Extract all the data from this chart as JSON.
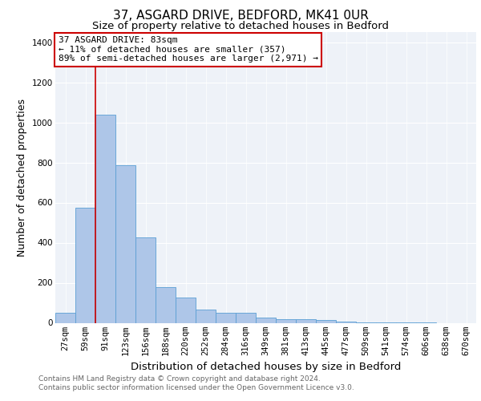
{
  "title": "37, ASGARD DRIVE, BEDFORD, MK41 0UR",
  "subtitle": "Size of property relative to detached houses in Bedford",
  "xlabel": "Distribution of detached houses by size in Bedford",
  "ylabel": "Number of detached properties",
  "categories": [
    "27sqm",
    "59sqm",
    "91sqm",
    "123sqm",
    "156sqm",
    "188sqm",
    "220sqm",
    "252sqm",
    "284sqm",
    "316sqm",
    "349sqm",
    "381sqm",
    "413sqm",
    "445sqm",
    "477sqm",
    "509sqm",
    "541sqm",
    "574sqm",
    "606sqm",
    "638sqm",
    "670sqm"
  ],
  "values": [
    50,
    575,
    1040,
    785,
    425,
    178,
    128,
    68,
    50,
    50,
    25,
    20,
    20,
    14,
    8,
    3,
    2,
    2,
    1,
    0,
    0
  ],
  "bar_color": "#aec6e8",
  "bar_edge_color": "#5a9fd4",
  "vline_x_idx": 2,
  "vline_color": "#cc0000",
  "annotation_text": "37 ASGARD DRIVE: 83sqm\n← 11% of detached houses are smaller (357)\n89% of semi-detached houses are larger (2,971) →",
  "annotation_box_color": "#ffffff",
  "annotation_box_edge": "#cc0000",
  "ylim": [
    0,
    1450
  ],
  "yticks": [
    0,
    200,
    400,
    600,
    800,
    1000,
    1200,
    1400
  ],
  "footer1": "Contains HM Land Registry data © Crown copyright and database right 2024.",
  "footer2": "Contains public sector information licensed under the Open Government Licence v3.0.",
  "bg_color": "#eef2f8",
  "grid_color": "#ffffff",
  "title_fontsize": 11,
  "subtitle_fontsize": 9.5,
  "axis_label_fontsize": 9,
  "tick_fontsize": 7.5,
  "footer_fontsize": 6.5
}
